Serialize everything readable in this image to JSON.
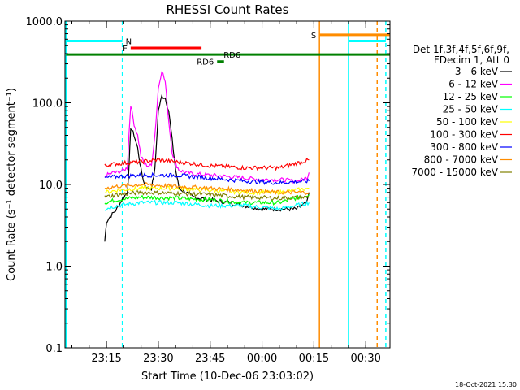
{
  "chart_data": {
    "type": "line",
    "title": "RHESSI Count Rates",
    "xlabel": "Start Time (10-Dec-06 23:03:02)",
    "ylabel": "Count Rate (s⁻¹ detector segment⁻¹)",
    "x_unit": "minutes after 23:00",
    "xlim": [
      3,
      97
    ],
    "ylim": [
      0.1,
      1000
    ],
    "y_scale": "log",
    "grid": false,
    "x_ticks": [
      {
        "value": 15,
        "label": "23:15"
      },
      {
        "value": 30,
        "label": "23:30"
      },
      {
        "value": 45,
        "label": "23:45"
      },
      {
        "value": 60,
        "label": "00:00"
      },
      {
        "value": 75,
        "label": "00:15"
      },
      {
        "value": 90,
        "label": "00:30"
      }
    ],
    "y_ticks": [
      {
        "value": 0.1,
        "label": "0.1"
      },
      {
        "value": 1,
        "label": "1.0"
      },
      {
        "value": 10,
        "label": "10.0"
      },
      {
        "value": 100,
        "label": "100.0"
      },
      {
        "value": 1000,
        "label": "1000.0"
      }
    ],
    "legend": {
      "position": "right",
      "header": [
        "Det 1f,3f,4f,5f,6f,9f,",
        "FDecim 1, Att 0"
      ],
      "entries": [
        "3 - 6 keV",
        "6 - 12 keV",
        "12 - 25 keV",
        "25 - 50 keV",
        "50 - 100 keV",
        "100 - 300 keV",
        "300 - 800 keV",
        "800 - 7000 keV",
        "7000 - 15000 keV"
      ]
    },
    "series": [
      {
        "name": "3 - 6 keV",
        "color": "#000000",
        "x": [
          14.5,
          15,
          16,
          17,
          18,
          19,
          20,
          21,
          21.5,
          22,
          23,
          24,
          25,
          26,
          27,
          28,
          29,
          30,
          31,
          32,
          33,
          34,
          35,
          36,
          38,
          40,
          45,
          50,
          55,
          60,
          65,
          70,
          73,
          73.6
        ],
        "y": [
          2.0,
          3.5,
          4.0,
          4.5,
          5.0,
          6.0,
          7.0,
          8.0,
          15,
          50,
          40,
          28,
          15,
          10,
          9,
          9,
          15,
          80,
          120,
          115,
          80,
          35,
          15,
          9,
          8,
          7,
          6.5,
          6,
          5.5,
          5,
          5,
          5,
          6,
          8
        ]
      },
      {
        "name": "6 - 12 keV",
        "color": "#ff00ff",
        "x": [
          14.5,
          15,
          16,
          17,
          18,
          19,
          20,
          21,
          21.5,
          22,
          23,
          24,
          25,
          26,
          27,
          28,
          29,
          30,
          31,
          32,
          33,
          34,
          35,
          36,
          38,
          40,
          45,
          50,
          55,
          60,
          65,
          70,
          73,
          73.6
        ],
        "y": [
          12,
          13,
          13.5,
          14,
          14,
          14.5,
          15,
          16,
          40,
          95,
          55,
          40,
          22,
          18,
          17,
          17,
          40,
          150,
          250,
          180,
          60,
          25,
          18,
          15,
          14,
          13.5,
          13,
          12.5,
          12,
          11.5,
          11.5,
          11,
          12,
          14
        ]
      },
      {
        "name": "12 - 25 keV",
        "color": "#00ff00",
        "x": [
          14.5,
          18,
          25,
          35,
          45,
          55,
          65,
          73.6
        ],
        "y": [
          6,
          6.5,
          7,
          6.8,
          6.5,
          6,
          6,
          7.5
        ]
      },
      {
        "name": "25 - 50 keV",
        "color": "#00ffff",
        "x": [
          14.5,
          18,
          25,
          35,
          45,
          55,
          65,
          73.6
        ],
        "y": [
          5,
          5.5,
          6,
          6,
          5.5,
          5.5,
          5,
          6
        ]
      },
      {
        "name": "50 - 100 keV",
        "color": "#ffff00",
        "x": [
          14.5,
          18,
          25,
          35,
          45,
          55,
          65,
          73.6
        ],
        "y": [
          8,
          8.5,
          9,
          9,
          8.5,
          8,
          8,
          9
        ]
      },
      {
        "name": "100 - 300 keV",
        "color": "#ff0000",
        "x": [
          14.5,
          18,
          25,
          30,
          35,
          40,
          45,
          55,
          65,
          73.6
        ],
        "y": [
          17,
          18,
          19,
          20,
          19,
          18,
          17,
          16,
          16,
          20
        ]
      },
      {
        "name": "300 - 800 keV",
        "color": "#0000ff",
        "x": [
          14.5,
          18,
          25,
          35,
          45,
          55,
          65,
          73.6
        ],
        "y": [
          12,
          12.5,
          13,
          13,
          12,
          11,
          10.5,
          11
        ]
      },
      {
        "name": "800 - 7000 keV",
        "color": "#ff8c00",
        "x": [
          14.5,
          18,
          25,
          35,
          45,
          55,
          65,
          73.6
        ],
        "y": [
          9,
          9.5,
          10,
          9.5,
          9,
          8.5,
          8,
          8
        ]
      },
      {
        "name": "7000 - 15000 keV",
        "color": "#808000",
        "x": [
          14.5,
          18,
          25,
          35,
          45,
          55,
          65,
          73.6
        ],
        "y": [
          7,
          7.5,
          8,
          7.8,
          7.5,
          7,
          6.8,
          7
        ]
      }
    ],
    "annotations": {
      "vlines": [
        {
          "x": 3.3,
          "color": "#00ffff",
          "style": "solid"
        },
        {
          "x": 19.6,
          "color": "#00ffff",
          "style": "dashed"
        },
        {
          "x": 76.6,
          "color": "#ff8c00",
          "style": "solid"
        },
        {
          "x": 85.0,
          "color": "#00ffff",
          "style": "solid"
        },
        {
          "x": 93.3,
          "color": "#ff8c00",
          "style": "dashed"
        },
        {
          "x": 95.8,
          "color": "#00ffff",
          "style": "dashed"
        }
      ],
      "hbars": [
        {
          "label": "N",
          "x1": 3.3,
          "x2": 19.6,
          "y": 570,
          "color": "#00ffff"
        },
        {
          "label": "F",
          "x1": 22.0,
          "x2": 42.5,
          "y": 470,
          "color": "#ff0000"
        },
        {
          "label": "RD6",
          "x1": 3.3,
          "x2": 97,
          "y": 390,
          "color": "#008000"
        },
        {
          "label": "RD6",
          "x1": 47.0,
          "x2": 49.0,
          "y": 320,
          "color": "#008000"
        },
        {
          "label": "S",
          "x1": 76.6,
          "x2": 97,
          "y": 680,
          "color": "#ff8c00"
        },
        {
          "label": "",
          "x1": 85.0,
          "x2": 95.8,
          "y": 570,
          "color": "#00ffff"
        }
      ]
    }
  },
  "footer_timestamp": "18-Oct-2021 15:30"
}
